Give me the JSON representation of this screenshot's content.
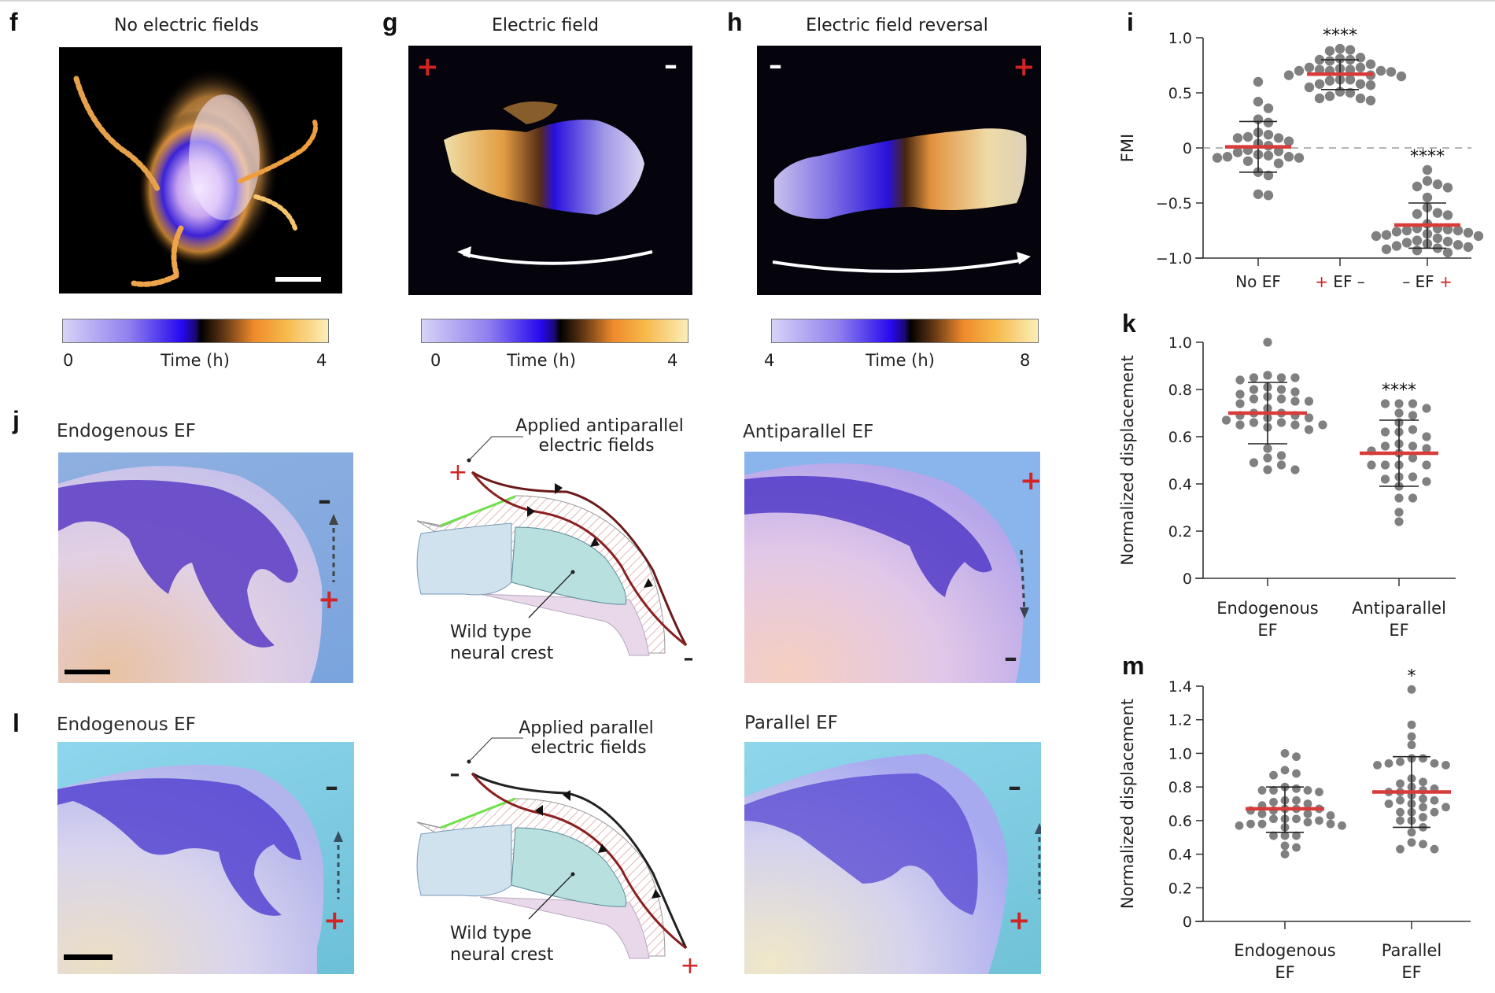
{
  "panels": {
    "f": {
      "label": "f",
      "title": "No electric fields",
      "colorbar": {
        "min": "0",
        "label": "Time (h)",
        "max": "4"
      }
    },
    "g": {
      "label": "g",
      "title": "Electric field",
      "left_sign": "+",
      "right_sign": "–",
      "colorbar": {
        "min": "0",
        "label": "Time (h)",
        "max": "4"
      }
    },
    "h": {
      "label": "h",
      "title": "Electric field reversal",
      "left_sign": "–",
      "right_sign": "+",
      "colorbar": {
        "min": "4",
        "label": "Time (h)",
        "max": "8"
      }
    },
    "i": {
      "label": "i"
    },
    "j": {
      "label": "j",
      "left_title": "Endogenous EF",
      "left_top_sign": "–",
      "left_bottom_sign": "+",
      "diagram_title_line1": "Applied antiparallel",
      "diagram_title_line2": "electric fields",
      "diagram_start_sign": "+",
      "diagram_end_sign": "–",
      "diagram_label_line1": "Wild type",
      "diagram_label_line2": "neural crest",
      "right_title": "Antiparallel EF",
      "right_top_sign": "+",
      "right_bottom_sign": "–"
    },
    "k": {
      "label": "k"
    },
    "l": {
      "label": "l",
      "left_title": "Endogenous EF",
      "left_top_sign": "–",
      "left_bottom_sign": "+",
      "diagram_title_line1": "Applied parallel",
      "diagram_title_line2": "electric fields",
      "diagram_start_sign": "–",
      "diagram_end_sign": "+",
      "diagram_label_line1": "Wild type",
      "diagram_label_line2": "neural crest",
      "right_title": "Parallel EF",
      "right_top_sign": "–",
      "right_bottom_sign": "+"
    },
    "m": {
      "label": "m"
    }
  },
  "colors": {
    "mean_line": "#d93a3a",
    "dots": "#808080",
    "plus_sign": "#d22424",
    "axis": "#333333"
  },
  "chart_data": [
    {
      "id": "i",
      "type": "scatter",
      "title": "",
      "ylabel": "FMI",
      "xlabel": "",
      "ylim": [
        -1.0,
        1.0
      ],
      "yticks": [
        1.0,
        0.5,
        0,
        -0.5,
        -1.0
      ],
      "ytick_labels": [
        "1.0",
        "0.5",
        "0",
        "−0.5",
        "−1.0"
      ],
      "reference_line": 0,
      "categories": [
        {
          "parts": [
            {
              "t": "No EF",
              "c": "dark"
            }
          ]
        },
        {
          "parts": [
            {
              "t": "+",
              "c": "red"
            },
            {
              "t": " EF –",
              "c": "dark"
            }
          ]
        },
        {
          "parts": [
            {
              "t": "– EF ",
              "c": "dark"
            },
            {
              "t": "+",
              "c": "red"
            }
          ]
        }
      ],
      "series": [
        {
          "name": "No EF",
          "mean": 0.01,
          "sd_upper": 0.24,
          "sd_lower": -0.22,
          "significance": "",
          "values": [
            0.6,
            0.42,
            0.36,
            0.26,
            0.23,
            0.14,
            0.12,
            0.1,
            0.09,
            0.09,
            0.06,
            0.04,
            0.02,
            -0.02,
            -0.03,
            -0.04,
            -0.06,
            -0.07,
            -0.08,
            -0.08,
            -0.09,
            -0.09,
            -0.12,
            -0.14,
            -0.22,
            -0.25,
            -0.42,
            -0.43
          ]
        },
        {
          "name": "+ EF –",
          "mean": 0.67,
          "sd_upper": 0.8,
          "sd_lower": 0.53,
          "significance": "****",
          "values": [
            0.9,
            0.89,
            0.88,
            0.82,
            0.81,
            0.8,
            0.8,
            0.79,
            0.76,
            0.73,
            0.73,
            0.72,
            0.71,
            0.71,
            0.7,
            0.7,
            0.7,
            0.69,
            0.66,
            0.66,
            0.65,
            0.62,
            0.62,
            0.61,
            0.58,
            0.58,
            0.57,
            0.55,
            0.51,
            0.5,
            0.47,
            0.45,
            0.45,
            0.43
          ]
        },
        {
          "name": "– EF +",
          "mean": -0.7,
          "sd_upper": -0.5,
          "sd_lower": -0.91,
          "significance": "****",
          "values": [
            -0.2,
            -0.3,
            -0.33,
            -0.35,
            -0.36,
            -0.45,
            -0.54,
            -0.59,
            -0.6,
            -0.61,
            -0.69,
            -0.73,
            -0.73,
            -0.74,
            -0.75,
            -0.75,
            -0.76,
            -0.77,
            -0.78,
            -0.79,
            -0.8,
            -0.8,
            -0.82,
            -0.84,
            -0.85,
            -0.86,
            -0.87,
            -0.88,
            -0.89,
            -0.9,
            -0.91,
            -0.92,
            -0.93,
            -0.95
          ]
        }
      ]
    },
    {
      "id": "k",
      "type": "scatter",
      "title": "",
      "ylabel": "Normalized displacement",
      "xlabel": "",
      "ylim": [
        0,
        1.0
      ],
      "yticks": [
        0,
        0.2,
        0.4,
        0.6,
        0.8,
        1.0
      ],
      "ytick_labels": [
        "0",
        "0.2",
        "0.4",
        "0.6",
        "0.8",
        "1.0"
      ],
      "categories": [
        {
          "line1": "Endogenous",
          "line2": "EF"
        },
        {
          "line1": "Antiparallel",
          "line2": "EF"
        }
      ],
      "series": [
        {
          "name": "Endogenous EF",
          "mean": 0.7,
          "sd_upper": 0.83,
          "sd_lower": 0.57,
          "significance": "",
          "values": [
            1.0,
            0.86,
            0.85,
            0.85,
            0.85,
            0.84,
            0.81,
            0.8,
            0.8,
            0.79,
            0.78,
            0.77,
            0.76,
            0.76,
            0.75,
            0.75,
            0.74,
            0.72,
            0.7,
            0.7,
            0.69,
            0.69,
            0.68,
            0.68,
            0.67,
            0.66,
            0.66,
            0.65,
            0.65,
            0.65,
            0.64,
            0.63,
            0.55,
            0.52,
            0.51,
            0.49,
            0.48,
            0.46,
            0.46
          ]
        },
        {
          "name": "Antiparallel EF",
          "mean": 0.53,
          "sd_upper": 0.67,
          "sd_lower": 0.39,
          "significance": "****",
          "values": [
            0.74,
            0.74,
            0.74,
            0.72,
            0.7,
            0.69,
            0.66,
            0.63,
            0.62,
            0.62,
            0.6,
            0.57,
            0.56,
            0.56,
            0.55,
            0.54,
            0.53,
            0.51,
            0.48,
            0.48,
            0.48,
            0.48,
            0.43,
            0.43,
            0.42,
            0.41,
            0.39,
            0.34,
            0.34,
            0.28,
            0.24
          ]
        }
      ]
    },
    {
      "id": "m",
      "type": "scatter",
      "title": "",
      "ylabel": "Normalized displacement",
      "xlabel": "",
      "ylim": [
        0,
        1.4
      ],
      "yticks": [
        0,
        0.2,
        0.4,
        0.6,
        0.8,
        1.0,
        1.2,
        1.4
      ],
      "ytick_labels": [
        "0",
        "0.2",
        "0.4",
        "0.6",
        "0.8",
        "1.0",
        "1.2",
        "1.4"
      ],
      "categories": [
        {
          "line1": "Endogenous",
          "line2": "EF"
        },
        {
          "line1": "Parallel",
          "line2": "EF"
        }
      ],
      "series": [
        {
          "name": "Endogenous EF",
          "mean": 0.67,
          "sd_upper": 0.8,
          "sd_lower": 0.53,
          "significance": "",
          "values": [
            1.0,
            0.98,
            0.9,
            0.88,
            0.87,
            0.79,
            0.8,
            0.78,
            0.78,
            0.77,
            0.78,
            0.72,
            0.72,
            0.71,
            0.7,
            0.69,
            0.67,
            0.67,
            0.67,
            0.66,
            0.66,
            0.64,
            0.64,
            0.63,
            0.61,
            0.61,
            0.61,
            0.6,
            0.59,
            0.58,
            0.58,
            0.58,
            0.57,
            0.57,
            0.56,
            0.51,
            0.51,
            0.51,
            0.45,
            0.44,
            0.4
          ]
        },
        {
          "name": "Parallel EF",
          "mean": 0.77,
          "sd_upper": 0.98,
          "sd_lower": 0.56,
          "significance": "*",
          "values": [
            1.38,
            1.17,
            1.1,
            1.05,
            0.97,
            0.97,
            0.95,
            0.94,
            0.94,
            0.93,
            0.93,
            0.85,
            0.83,
            0.82,
            0.8,
            0.79,
            0.78,
            0.77,
            0.77,
            0.75,
            0.73,
            0.72,
            0.72,
            0.7,
            0.7,
            0.68,
            0.68,
            0.65,
            0.65,
            0.65,
            0.62,
            0.6,
            0.6,
            0.56,
            0.53,
            0.47,
            0.46,
            0.43,
            0.43
          ]
        }
      ]
    }
  ]
}
